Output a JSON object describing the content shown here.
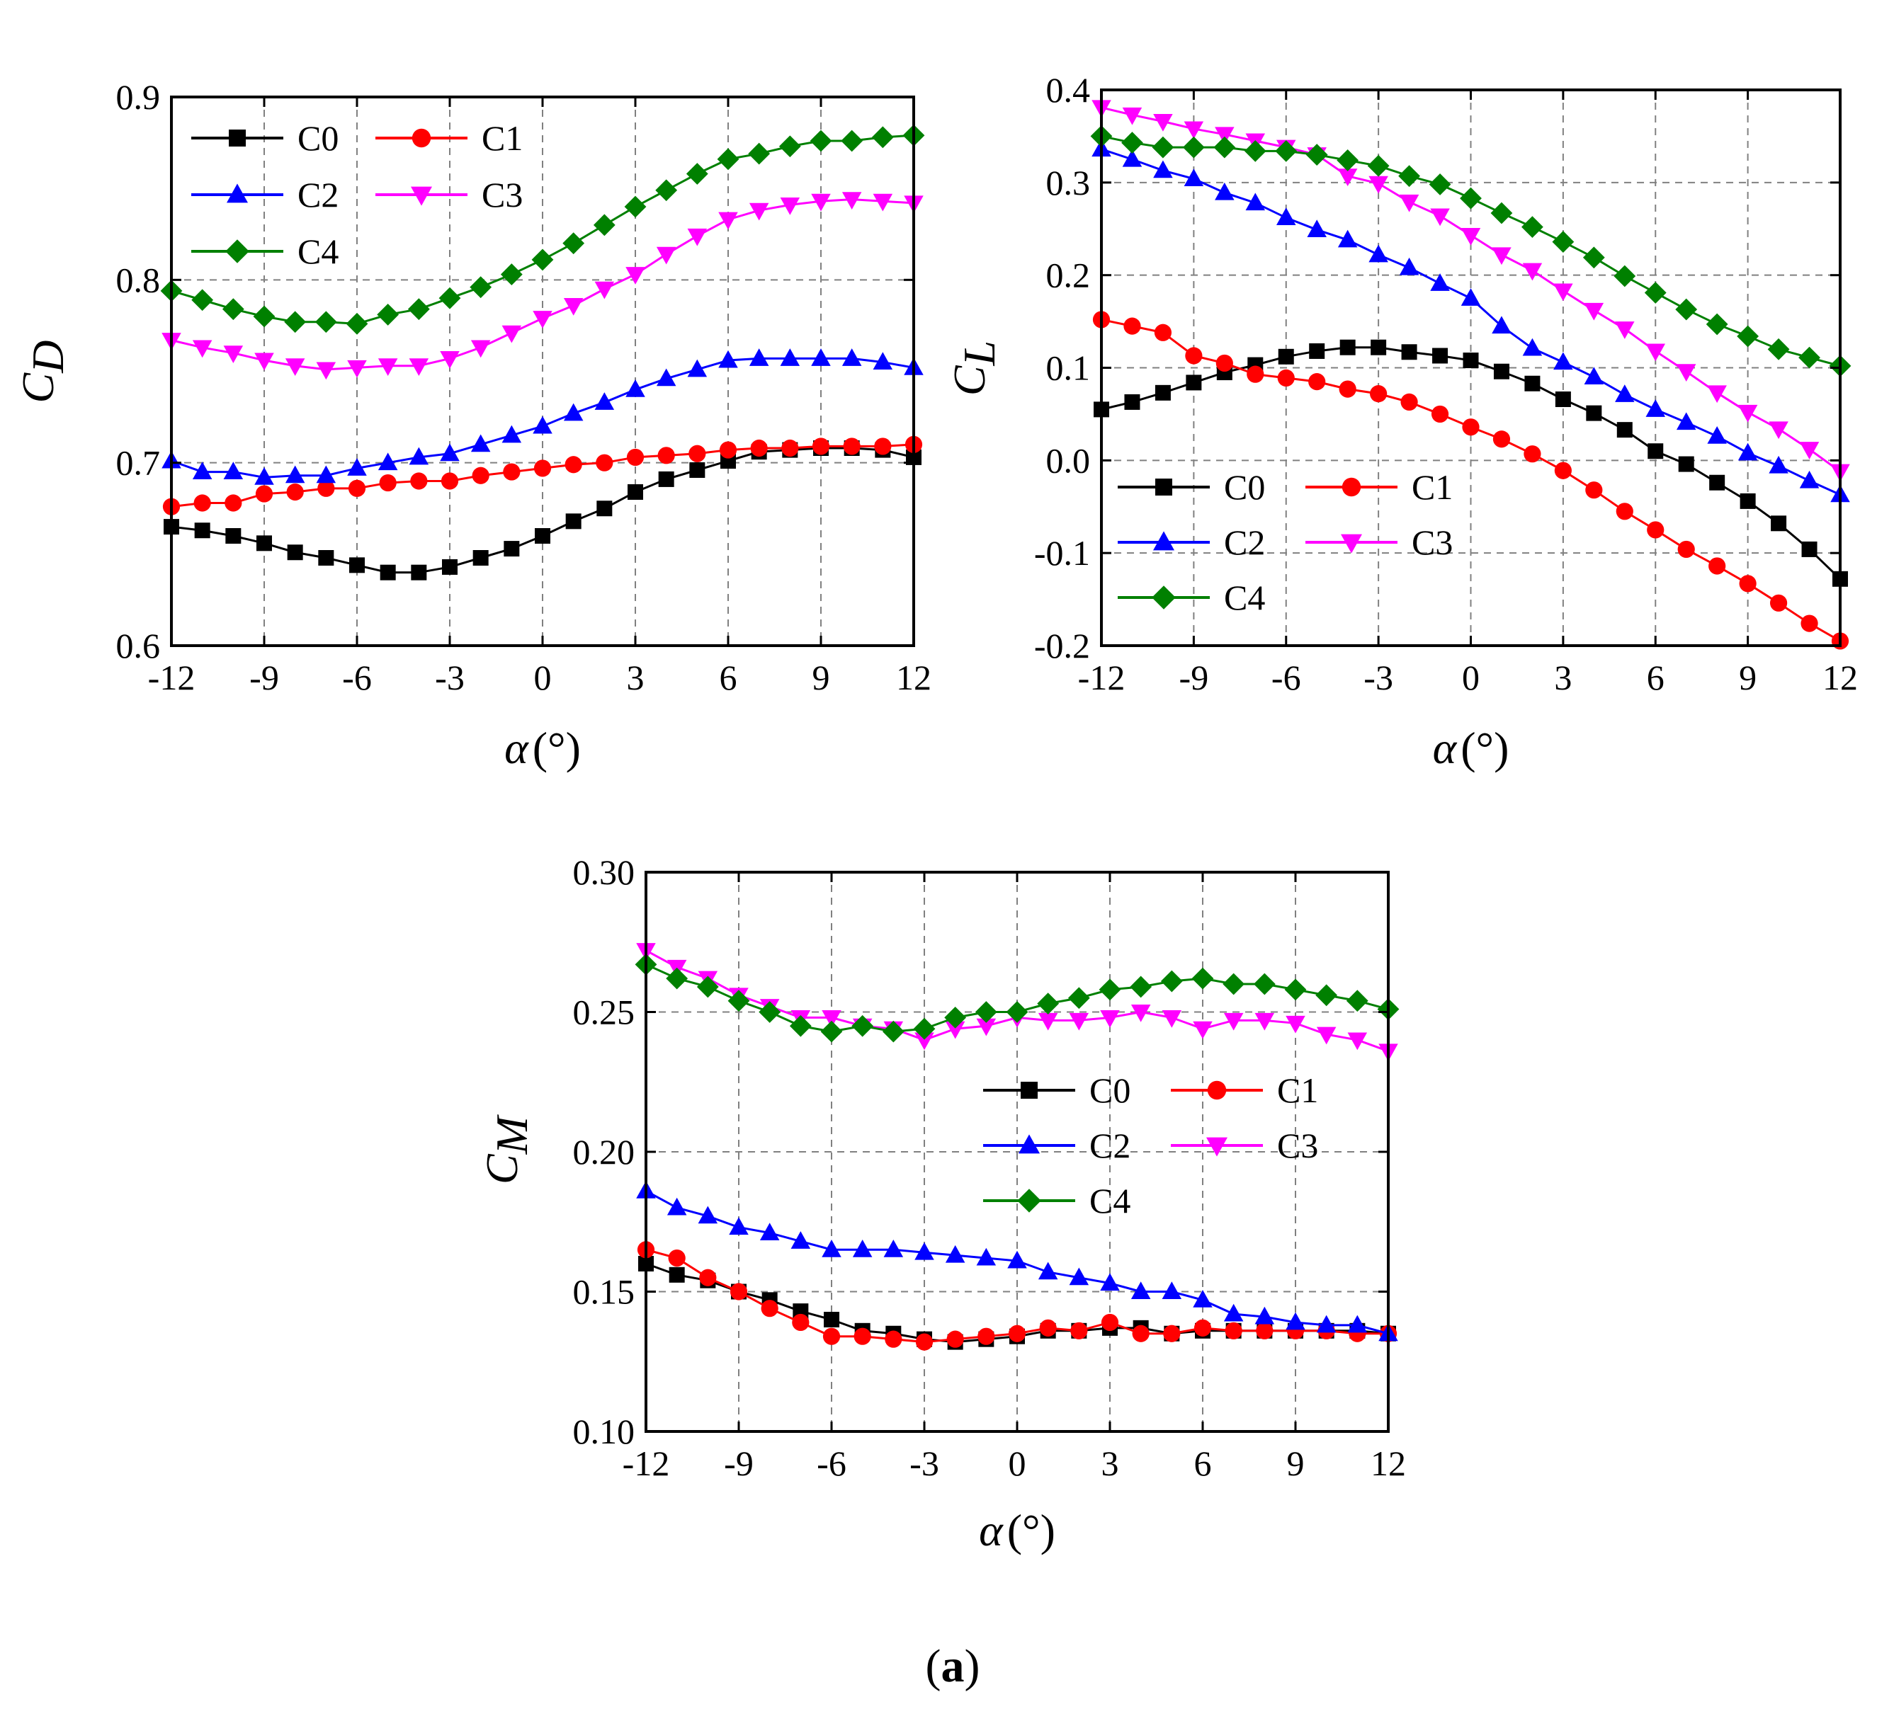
{
  "figure": {
    "caption_open": "(",
    "caption_letter": "a",
    "caption_close": ")"
  },
  "colors": {
    "C0": "#000000",
    "C1": "#ff0000",
    "C2": "#0000ff",
    "C3": "#ff00ff",
    "C4": "#008000",
    "grid": "#808080",
    "axis": "#000000"
  },
  "markers": {
    "C0": "square",
    "C1": "circle",
    "C2": "triangle-up",
    "C3": "triangle-down",
    "C4": "diamond"
  },
  "chart_data": [
    {
      "id": "cd",
      "type": "line",
      "ylabel_main": "C",
      "ylabel_sub": "D",
      "xlabel_main": "α",
      "xlabel_unit": "(°)",
      "xlim": [
        -12,
        12
      ],
      "ylim": [
        0.6,
        0.9
      ],
      "xticks": [
        -12,
        -9,
        -6,
        -3,
        0,
        3,
        6,
        9,
        12
      ],
      "xtick_labels": [
        "-12",
        "-9",
        "-6",
        "-3",
        "0",
        "3",
        "6",
        "9",
        "12"
      ],
      "yticks": [
        0.6,
        0.7,
        0.8,
        0.9
      ],
      "ytick_labels": [
        "0.6",
        "0.7",
        "0.8",
        "0.9"
      ],
      "grid": true,
      "legend_position": "top-left",
      "x": [
        -12,
        -11,
        -10,
        -9,
        -8,
        -7,
        -6,
        -5,
        -4,
        -3,
        -2,
        -1,
        0,
        1,
        2,
        3,
        4,
        5,
        6,
        7,
        8,
        9,
        10,
        11,
        12
      ],
      "series": [
        {
          "name": "C0",
          "values": [
            0.665,
            0.663,
            0.66,
            0.656,
            0.651,
            0.648,
            0.644,
            0.64,
            0.64,
            0.643,
            0.648,
            0.653,
            0.66,
            0.668,
            0.675,
            0.684,
            0.691,
            0.696,
            0.701,
            0.706,
            0.707,
            0.708,
            0.708,
            0.707,
            0.703
          ]
        },
        {
          "name": "C1",
          "values": [
            0.676,
            0.678,
            0.678,
            0.683,
            0.684,
            0.686,
            0.686,
            0.689,
            0.69,
            0.69,
            0.693,
            0.695,
            0.697,
            0.699,
            0.7,
            0.703,
            0.704,
            0.705,
            0.707,
            0.708,
            0.708,
            0.709,
            0.709,
            0.709,
            0.71
          ]
        },
        {
          "name": "C2",
          "values": [
            0.701,
            0.695,
            0.695,
            0.692,
            0.693,
            0.693,
            0.697,
            0.7,
            0.703,
            0.705,
            0.71,
            0.715,
            0.72,
            0.727,
            0.733,
            0.74,
            0.746,
            0.751,
            0.756,
            0.757,
            0.757,
            0.757,
            0.757,
            0.755,
            0.752
          ]
        },
        {
          "name": "C3",
          "values": [
            0.767,
            0.763,
            0.76,
            0.756,
            0.753,
            0.751,
            0.752,
            0.753,
            0.753,
            0.757,
            0.763,
            0.771,
            0.779,
            0.786,
            0.795,
            0.803,
            0.814,
            0.824,
            0.833,
            0.838,
            0.841,
            0.843,
            0.844,
            0.843,
            0.842
          ]
        },
        {
          "name": "C4",
          "values": [
            0.794,
            0.789,
            0.784,
            0.78,
            0.777,
            0.777,
            0.776,
            0.781,
            0.784,
            0.79,
            0.796,
            0.803,
            0.811,
            0.82,
            0.83,
            0.84,
            0.849,
            0.858,
            0.866,
            0.869,
            0.873,
            0.876,
            0.876,
            0.878,
            0.879
          ]
        }
      ]
    },
    {
      "id": "cl",
      "type": "line",
      "ylabel_main": "C",
      "ylabel_sub": "L",
      "xlabel_main": "α",
      "xlabel_unit": "(°)",
      "xlim": [
        -12,
        12
      ],
      "ylim": [
        -0.2,
        0.4
      ],
      "xticks": [
        -12,
        -9,
        -6,
        -3,
        0,
        3,
        6,
        9,
        12
      ],
      "xtick_labels": [
        "-12",
        "-9",
        "-6",
        "-3",
        "0",
        "3",
        "6",
        "9",
        "12"
      ],
      "yticks": [
        -0.2,
        -0.1,
        0.0,
        0.1,
        0.2,
        0.3,
        0.4
      ],
      "ytick_labels": [
        "-0.2",
        "-0.1",
        "0.0",
        "0.1",
        "0.2",
        "0.3",
        "0.4"
      ],
      "grid": true,
      "legend_position": "bottom-left",
      "x": [
        -12,
        -11,
        -10,
        -9,
        -8,
        -7,
        -6,
        -5,
        -4,
        -3,
        -2,
        -1,
        0,
        1,
        2,
        3,
        4,
        5,
        6,
        7,
        8,
        9,
        10,
        11,
        12
      ],
      "series": [
        {
          "name": "C0",
          "values": [
            0.055,
            0.063,
            0.073,
            0.084,
            0.095,
            0.103,
            0.112,
            0.118,
            0.122,
            0.122,
            0.117,
            0.113,
            0.108,
            0.096,
            0.083,
            0.066,
            0.051,
            0.033,
            0.01,
            -0.004,
            -0.024,
            -0.044,
            -0.068,
            -0.096,
            -0.128
          ]
        },
        {
          "name": "C1",
          "values": [
            0.152,
            0.145,
            0.138,
            0.113,
            0.105,
            0.093,
            0.089,
            0.085,
            0.077,
            0.072,
            0.063,
            0.05,
            0.036,
            0.023,
            0.007,
            -0.011,
            -0.032,
            -0.055,
            -0.075,
            -0.096,
            -0.114,
            -0.133,
            -0.154,
            -0.176,
            -0.195
          ]
        },
        {
          "name": "C2",
          "values": [
            0.336,
            0.325,
            0.313,
            0.304,
            0.289,
            0.278,
            0.262,
            0.249,
            0.238,
            0.222,
            0.208,
            0.191,
            0.175,
            0.145,
            0.121,
            0.106,
            0.09,
            0.071,
            0.055,
            0.041,
            0.026,
            0.008,
            -0.006,
            -0.022,
            -0.037
          ]
        },
        {
          "name": "C3",
          "values": [
            0.381,
            0.373,
            0.366,
            0.358,
            0.352,
            0.345,
            0.338,
            0.33,
            0.307,
            0.299,
            0.279,
            0.264,
            0.243,
            0.222,
            0.205,
            0.183,
            0.162,
            0.142,
            0.118,
            0.096,
            0.073,
            0.052,
            0.034,
            0.012,
            -0.012
          ]
        },
        {
          "name": "C4",
          "values": [
            0.35,
            0.343,
            0.338,
            0.338,
            0.338,
            0.334,
            0.334,
            0.33,
            0.324,
            0.318,
            0.307,
            0.298,
            0.283,
            0.267,
            0.252,
            0.236,
            0.219,
            0.199,
            0.181,
            0.163,
            0.147,
            0.134,
            0.12,
            0.111,
            0.102
          ]
        }
      ]
    },
    {
      "id": "cm",
      "type": "line",
      "ylabel_main": "C",
      "ylabel_sub": "M",
      "xlabel_main": "α",
      "xlabel_unit": "(°)",
      "xlim": [
        -12,
        12
      ],
      "ylim": [
        0.1,
        0.3
      ],
      "xticks": [
        -12,
        -9,
        -6,
        -3,
        0,
        3,
        6,
        9,
        12
      ],
      "xtick_labels": [
        "-12",
        "-9",
        "-6",
        "-3",
        "0",
        "3",
        "6",
        "9",
        "12"
      ],
      "yticks": [
        0.1,
        0.15,
        0.2,
        0.25,
        0.3
      ],
      "ytick_labels": [
        "0.10",
        "0.15",
        "0.20",
        "0.25",
        "0.30"
      ],
      "grid": true,
      "legend_position": "center-right",
      "x": [
        -12,
        -11,
        -10,
        -9,
        -8,
        -7,
        -6,
        -5,
        -4,
        -3,
        -2,
        -1,
        0,
        1,
        2,
        3,
        4,
        5,
        6,
        7,
        8,
        9,
        10,
        11,
        12
      ],
      "series": [
        {
          "name": "C0",
          "values": [
            0.16,
            0.156,
            0.154,
            0.15,
            0.147,
            0.143,
            0.14,
            0.136,
            0.135,
            0.133,
            0.132,
            0.133,
            0.134,
            0.136,
            0.136,
            0.137,
            0.137,
            0.135,
            0.136,
            0.136,
            0.136,
            0.136,
            0.136,
            0.136,
            0.135
          ]
        },
        {
          "name": "C1",
          "values": [
            0.165,
            0.162,
            0.155,
            0.15,
            0.144,
            0.139,
            0.134,
            0.134,
            0.133,
            0.132,
            0.133,
            0.134,
            0.135,
            0.137,
            0.136,
            0.139,
            0.135,
            0.135,
            0.137,
            0.136,
            0.136,
            0.136,
            0.136,
            0.135,
            0.135
          ]
        },
        {
          "name": "C2",
          "values": [
            0.186,
            0.18,
            0.177,
            0.173,
            0.171,
            0.168,
            0.165,
            0.165,
            0.165,
            0.164,
            0.163,
            0.162,
            0.161,
            0.157,
            0.155,
            0.153,
            0.15,
            0.15,
            0.147,
            0.142,
            0.141,
            0.139,
            0.138,
            0.138,
            0.135
          ]
        },
        {
          "name": "C3",
          "values": [
            0.272,
            0.266,
            0.262,
            0.256,
            0.252,
            0.248,
            0.248,
            0.245,
            0.244,
            0.24,
            0.244,
            0.245,
            0.248,
            0.247,
            0.247,
            0.248,
            0.25,
            0.248,
            0.244,
            0.247,
            0.247,
            0.246,
            0.242,
            0.24,
            0.236
          ]
        },
        {
          "name": "C4",
          "values": [
            0.267,
            0.262,
            0.259,
            0.254,
            0.25,
            0.245,
            0.243,
            0.245,
            0.243,
            0.244,
            0.248,
            0.25,
            0.25,
            0.253,
            0.255,
            0.258,
            0.259,
            0.261,
            0.262,
            0.26,
            0.26,
            0.258,
            0.256,
            0.254,
            0.251
          ]
        }
      ]
    }
  ]
}
